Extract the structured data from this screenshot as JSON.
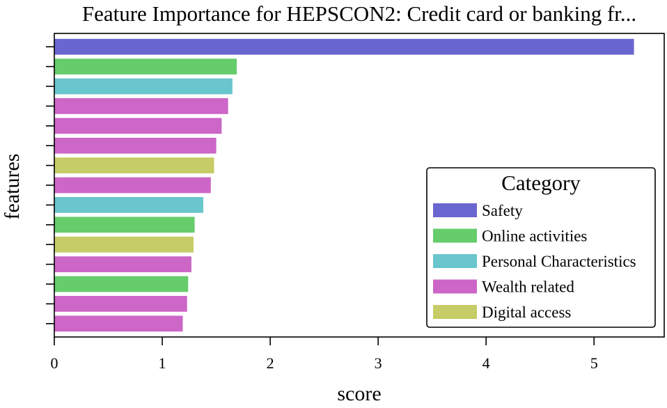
{
  "chart_data": {
    "type": "bar",
    "orientation": "horizontal",
    "title": "Feature Importance for HEPSCON2: Credit card or banking fr...",
    "xlabel": "score",
    "ylabel": "features",
    "xlim": [
      0,
      5.65
    ],
    "xticks": [
      0,
      1,
      2,
      3,
      4,
      5
    ],
    "grid": false,
    "legend": {
      "title": "Category",
      "placement": "center-right",
      "entries": [
        {
          "name": "Safety",
          "color": "#6a66cf"
        },
        {
          "name": "Online activities",
          "color": "#66cd6c"
        },
        {
          "name": "Personal Characteristics",
          "color": "#68c6cc"
        },
        {
          "name": "Wealth related",
          "color": "#cc66c7"
        },
        {
          "name": "Digital access",
          "color": "#c6cc66"
        }
      ]
    },
    "bars": [
      {
        "value": 5.37,
        "category": "Safety"
      },
      {
        "value": 1.69,
        "category": "Online activities"
      },
      {
        "value": 1.65,
        "category": "Personal Characteristics"
      },
      {
        "value": 1.61,
        "category": "Wealth related"
      },
      {
        "value": 1.55,
        "category": "Wealth related"
      },
      {
        "value": 1.5,
        "category": "Wealth related"
      },
      {
        "value": 1.48,
        "category": "Digital access"
      },
      {
        "value": 1.45,
        "category": "Wealth related"
      },
      {
        "value": 1.38,
        "category": "Personal Characteristics"
      },
      {
        "value": 1.3,
        "category": "Online activities"
      },
      {
        "value": 1.29,
        "category": "Digital access"
      },
      {
        "value": 1.27,
        "category": "Wealth related"
      },
      {
        "value": 1.24,
        "category": "Online activities"
      },
      {
        "value": 1.23,
        "category": "Wealth related"
      },
      {
        "value": 1.19,
        "category": "Wealth related"
      }
    ]
  }
}
